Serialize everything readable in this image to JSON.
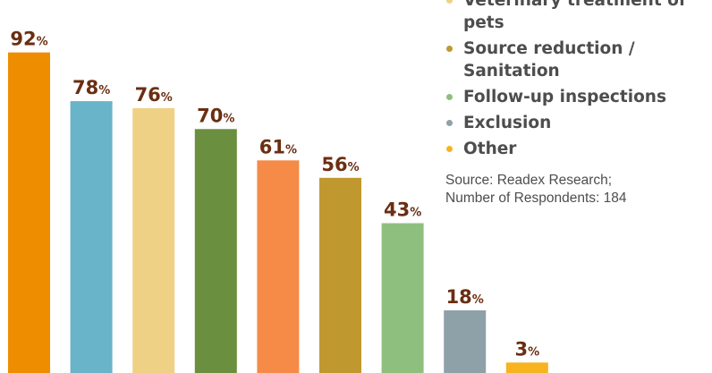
{
  "chart_data": {
    "type": "bar",
    "categories": [
      "",
      "",
      "",
      "",
      "",
      "",
      "Follow-up inspections",
      "Exclusion",
      "Other"
    ],
    "values": [
      92,
      78,
      76,
      70,
      61,
      56,
      43,
      18,
      3
    ],
    "value_suffix": "%",
    "colors": [
      "#ef8d00",
      "#6ab4c9",
      "#efd186",
      "#6a8f3e",
      "#f58b46",
      "#bf9830",
      "#8fbf7f",
      "#8fa1a8",
      "#f7b320"
    ],
    "ylim": [
      0,
      100
    ],
    "grid": false,
    "legend_position": "right"
  },
  "legend": {
    "items": [
      {
        "label": "Veterinary treatment of pets",
        "color": "#efd186"
      },
      {
        "label": "Source reduction / Sanitation",
        "color": "#bf9830"
      },
      {
        "label": "Follow-up inspections",
        "color": "#8fbf7f"
      },
      {
        "label": "Exclusion",
        "color": "#8fa1a8"
      },
      {
        "label": "Other",
        "color": "#f7b320"
      }
    ]
  },
  "source": {
    "line1": "Source: Readex Research;",
    "line2": "Number of Respondents: 184"
  }
}
